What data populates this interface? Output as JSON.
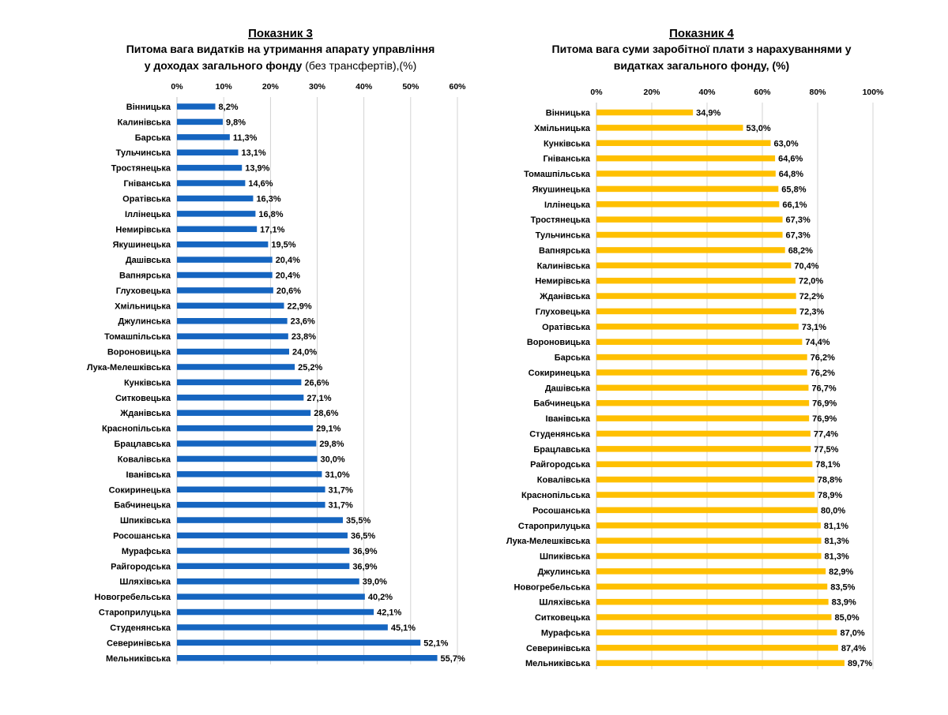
{
  "chart_data": [
    {
      "type": "bar",
      "orientation": "horizontal",
      "heading": "Показник 3",
      "title_lines": [
        "Питома вага видатків на утримання апарату управління",
        "у доходах загального фонду"
      ],
      "title_suffix": " (без трансфертів),(%)",
      "bar_color": "#1565c0",
      "xlim": [
        0,
        60
      ],
      "x_ticks": [
        "0%",
        "10%",
        "20%",
        "30%",
        "40%",
        "50%",
        "60%"
      ],
      "categories": [
        "Вінницька",
        "Калинівська",
        "Барська",
        "Тульчинська",
        "Тростянецька",
        "Гніванська",
        "Оратівська",
        "Іллінецька",
        "Немирівська",
        "Якушинецька",
        "Дашівська",
        "Вапнярська",
        "Глуховецька",
        "Хмільницька",
        "Джулинська",
        "Томашпільська",
        "Вороновицька",
        "Лука-Мелешківська",
        "Кунківська",
        "Ситковецька",
        "Жданівська",
        "Краснопільська",
        "Брацлавська",
        "Ковалівська",
        "Іванівська",
        "Сокиринецька",
        "Бабчинецька",
        "Шпиківська",
        "Росошанська",
        "Мурафська",
        "Райгородська",
        "Шляхівська",
        "Новогребельська",
        "Староприлуцька",
        "Студенянська",
        "Северинівська",
        "Мельниківська"
      ],
      "values": [
        8.2,
        9.8,
        11.3,
        13.1,
        13.9,
        14.6,
        16.3,
        16.8,
        17.1,
        19.5,
        20.4,
        20.4,
        20.6,
        22.9,
        23.6,
        23.8,
        24.0,
        25.2,
        26.6,
        27.1,
        28.6,
        29.1,
        29.8,
        30.0,
        31.0,
        31.7,
        31.7,
        35.5,
        36.5,
        36.9,
        36.9,
        39.0,
        40.2,
        42.1,
        45.1,
        52.1,
        55.7
      ],
      "labels": [
        "8,2%",
        "9,8%",
        "11,3%",
        "13,1%",
        "13,9%",
        "14,6%",
        "16,3%",
        "16,8%",
        "17,1%",
        "19,5%",
        "20,4%",
        "20,4%",
        "20,6%",
        "22,9%",
        "23,6%",
        "23,8%",
        "24,0%",
        "25,2%",
        "26,6%",
        "27,1%",
        "28,6%",
        "29,1%",
        "29,8%",
        "30,0%",
        "31,0%",
        "31,7%",
        "31,7%",
        "35,5%",
        "36,5%",
        "36,9%",
        "36,9%",
        "39,0%",
        "40,2%",
        "42,1%",
        "45,1%",
        "52,1%",
        "55,7%"
      ]
    },
    {
      "type": "bar",
      "orientation": "horizontal",
      "heading": "Показник 4",
      "title_lines": [
        "Питома вага суми заробітної плати з нарахуваннями у",
        "видатках загального фонду, (%)"
      ],
      "title_suffix": "",
      "bar_color": "#ffc000",
      "xlim": [
        0,
        100
      ],
      "x_ticks": [
        "0%",
        "20%",
        "40%",
        "60%",
        "80%",
        "100%"
      ],
      "categories": [
        "Вінницька",
        "Хмільницька",
        "Кунківська",
        "Гніванська",
        "Томашпільська",
        "Якушинецька",
        "Іллінецька",
        "Тростянецька",
        "Тульчинська",
        "Вапнярська",
        "Калинівська",
        "Немирівська",
        "Жданівська",
        "Глуховецька",
        "Оратівська",
        "Вороновицька",
        "Барська",
        "Сокиринецька",
        "Дашівська",
        "Бабчинецька",
        "Іванівська",
        "Студенянська",
        "Брацлавська",
        "Райгородська",
        "Ковалівська",
        "Краснопільська",
        "Росошанська",
        "Староприлуцька",
        "Лука-Мелешківська",
        "Шпиківська",
        "Джулинська",
        "Новогребельська",
        "Шляхівська",
        "Ситковецька",
        "Мурафська",
        "Северинівська",
        "Мельниківська"
      ],
      "values": [
        34.9,
        53.0,
        63.0,
        64.6,
        64.8,
        65.8,
        66.1,
        67.3,
        67.3,
        68.2,
        70.4,
        72.0,
        72.2,
        72.3,
        73.1,
        74.4,
        76.2,
        76.2,
        76.7,
        76.9,
        76.9,
        77.4,
        77.5,
        78.1,
        78.8,
        78.9,
        80.0,
        81.1,
        81.3,
        81.3,
        82.9,
        83.5,
        83.9,
        85.0,
        87.0,
        87.4,
        89.7
      ],
      "labels": [
        "34,9%",
        "53,0%",
        "63,0%",
        "64,6%",
        "64,8%",
        "65,8%",
        "66,1%",
        "67,3%",
        "67,3%",
        "68,2%",
        "70,4%",
        "72,0%",
        "72,2%",
        "72,3%",
        "73,1%",
        "74,4%",
        "76,2%",
        "76,2%",
        "76,7%",
        "76,9%",
        "76,9%",
        "77,4%",
        "77,5%",
        "78,1%",
        "78,8%",
        "78,9%",
        "80,0%",
        "81,1%",
        "81,3%",
        "81,3%",
        "82,9%",
        "83,5%",
        "83,9%",
        "85,0%",
        "87,0%",
        "87,4%",
        "89,7%"
      ]
    }
  ]
}
